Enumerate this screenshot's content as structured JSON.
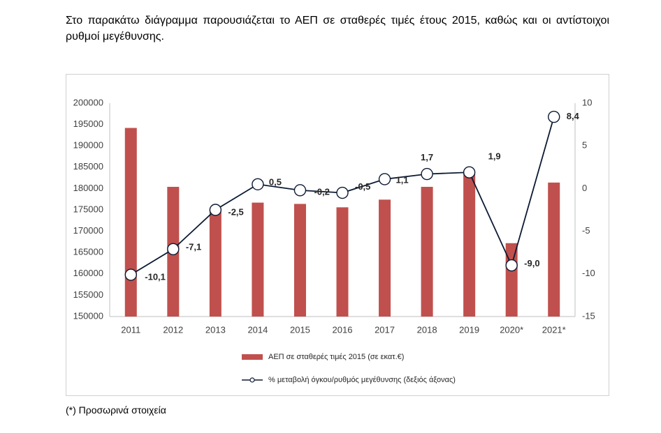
{
  "intro_text": "Στο παρακάτω διάγραμμα παρουσιάζεται το ΑΕΠ σε σταθερές τιμές έτους 2015, καθώς και οι αντίστοιχοι ρυθμοί μεγέθυνσης.",
  "footnote": "(*) Προσωρινά στοιχεία",
  "colors": {
    "bar": "#c0504d",
    "line": "#0b1a33",
    "marker_fill": "#ffffff"
  },
  "chart_data": {
    "type": "bar+line",
    "categories": [
      "2011",
      "2012",
      "2013",
      "2014",
      "2015",
      "2016",
      "2017",
      "2018",
      "2019",
      "2020*",
      "2021*"
    ],
    "series": [
      {
        "name": "ΑΕΠ σε σταθερές τιμές 2015 (σε εκατ.€)",
        "type": "bar",
        "axis": "left",
        "values": [
          194200,
          180400,
          175200,
          176700,
          176400,
          175600,
          177400,
          180400,
          183600,
          167200,
          181400
        ]
      },
      {
        "name": "% μεταβολή όγκου/ρυθμός μεγέθυνσης (δεξιός άξονας)",
        "type": "line",
        "axis": "right",
        "values": [
          -10.1,
          -7.1,
          -2.5,
          0.5,
          -0.2,
          -0.5,
          1.1,
          1.7,
          1.9,
          -9.0,
          8.4
        ],
        "labels": [
          "-10,1",
          "-7,1",
          "-2,5",
          "0,5",
          "-0,2",
          "-0,5",
          "1,1",
          "1,7",
          "1,9",
          "-9,0",
          "8,4"
        ]
      }
    ],
    "y_left": {
      "min": 150000,
      "max": 200000,
      "step": 5000,
      "ticks": [
        "150000",
        "155000",
        "160000",
        "165000",
        "170000",
        "175000",
        "180000",
        "185000",
        "190000",
        "195000",
        "200000"
      ]
    },
    "y_right": {
      "min": -15,
      "max": 10,
      "step": 5,
      "ticks": [
        "-15",
        "-10",
        "-5",
        "0",
        "5",
        "10"
      ]
    },
    "legend_position": "bottom"
  }
}
